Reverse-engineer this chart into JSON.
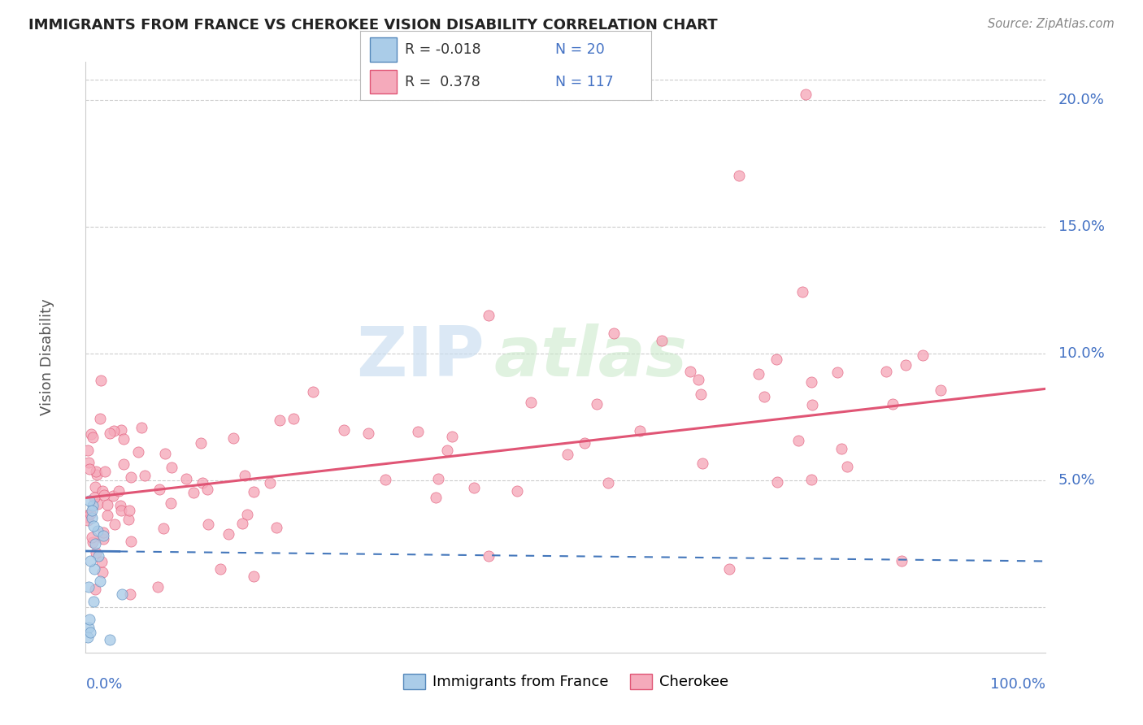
{
  "title": "IMMIGRANTS FROM FRANCE VS CHEROKEE VISION DISABILITY CORRELATION CHART",
  "source": "Source: ZipAtlas.com",
  "ylabel": "Vision Disability",
  "x_lim": [
    0.0,
    100.0
  ],
  "y_lim": [
    -1.8,
    21.5
  ],
  "y_grid_vals": [
    0.0,
    5.0,
    10.0,
    15.0,
    20.0
  ],
  "y_label_vals": [
    5.0,
    10.0,
    15.0,
    20.0
  ],
  "y_label_strs": [
    "5.0%",
    "10.0%",
    "15.0%",
    "20.0%"
  ],
  "color_france_fill": "#aacce8",
  "color_france_edge": "#5588bb",
  "color_cherokee_fill": "#f5aabb",
  "color_cherokee_edge": "#e05575",
  "color_france_line_solid": "#4477bb",
  "color_cherokee_line": "#e05575",
  "color_axis_blue": "#4472c4",
  "color_grid": "#cccccc",
  "color_title": "#222222",
  "bg_color": "#ffffff",
  "cherokee_trend_x0": 0.0,
  "cherokee_trend_y0": 4.3,
  "cherokee_trend_x1": 100.0,
  "cherokee_trend_y1": 8.6,
  "france_trend_x0": 0.0,
  "france_trend_y0": 2.2,
  "france_trend_x1": 100.0,
  "france_trend_y1": 1.8,
  "france_solid_end_x": 3.5,
  "marker_size": 90
}
